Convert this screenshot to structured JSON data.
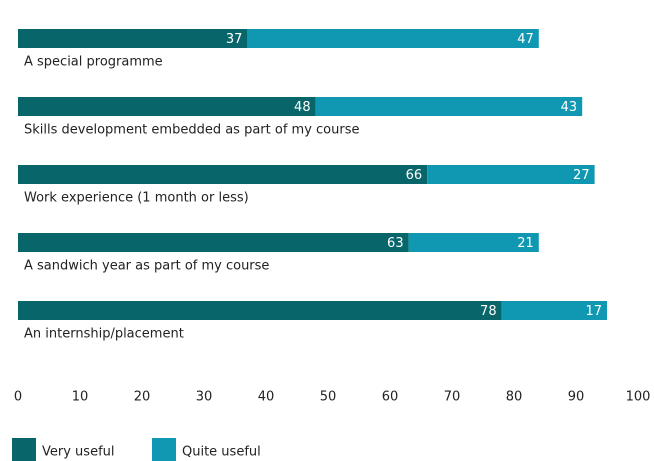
{
  "chart_data": {
    "type": "bar",
    "orientation": "horizontal",
    "stacked": true,
    "categories": [
      "A special programme",
      "Skills development embedded as part of my course",
      "Work experience (1 month or less)",
      "A sandwich year as part of my course",
      "An internship/placement"
    ],
    "series": [
      {
        "name": "Very useful",
        "color": "#08656a",
        "values": [
          37,
          48,
          66,
          63,
          78
        ]
      },
      {
        "name": "Quite useful",
        "color": "#1098b3",
        "values": [
          47,
          43,
          27,
          21,
          17
        ]
      }
    ],
    "xlim": [
      0,
      100
    ],
    "xticks": [
      0,
      10,
      20,
      30,
      40,
      50,
      60,
      70,
      80,
      90,
      100
    ],
    "grid": false,
    "legend": "bottom-left"
  }
}
